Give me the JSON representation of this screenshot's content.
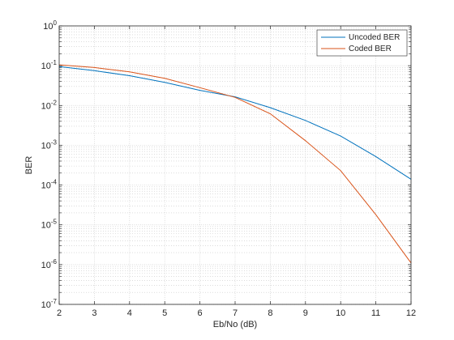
{
  "chart_data": {
    "type": "line",
    "xlabel": "Eb/No (dB)",
    "ylabel": "BER",
    "xlim": [
      2,
      12
    ],
    "ylim": [
      1e-07,
      1
    ],
    "yscale": "log",
    "xticks": [
      2,
      3,
      4,
      5,
      6,
      7,
      8,
      9,
      10,
      11,
      12
    ],
    "yticks": [
      {
        "base": "10",
        "exp": "-7",
        "value": 1e-07
      },
      {
        "base": "10",
        "exp": "-6",
        "value": 1e-06
      },
      {
        "base": "10",
        "exp": "-5",
        "value": 1e-05
      },
      {
        "base": "10",
        "exp": "-4",
        "value": 0.0001
      },
      {
        "base": "10",
        "exp": "-3",
        "value": 0.001
      },
      {
        "base": "10",
        "exp": "-2",
        "value": 0.01
      },
      {
        "base": "10",
        "exp": "-1",
        "value": 0.1
      },
      {
        "base": "10",
        "exp": "0",
        "value": 1
      }
    ],
    "grid": true,
    "minor_grid": true,
    "legend_position": "top-right",
    "series": [
      {
        "name": "Uncoded BER",
        "color": "#0072bd",
        "x": [
          2,
          3,
          4,
          5,
          6,
          7,
          8,
          9,
          10,
          11,
          12
        ],
        "y": [
          0.095,
          0.075,
          0.056,
          0.038,
          0.024,
          0.0165,
          0.0088,
          0.0042,
          0.0017,
          0.00052,
          0.00014
        ]
      },
      {
        "name": "Coded BER",
        "color": "#d95319",
        "x": [
          2,
          3,
          4,
          5,
          6,
          7,
          8,
          9,
          10,
          11,
          12
        ],
        "y": [
          0.105,
          0.09,
          0.07,
          0.048,
          0.028,
          0.016,
          0.0062,
          0.0013,
          0.00023,
          1.8e-05,
          1.1e-06
        ]
      }
    ]
  }
}
